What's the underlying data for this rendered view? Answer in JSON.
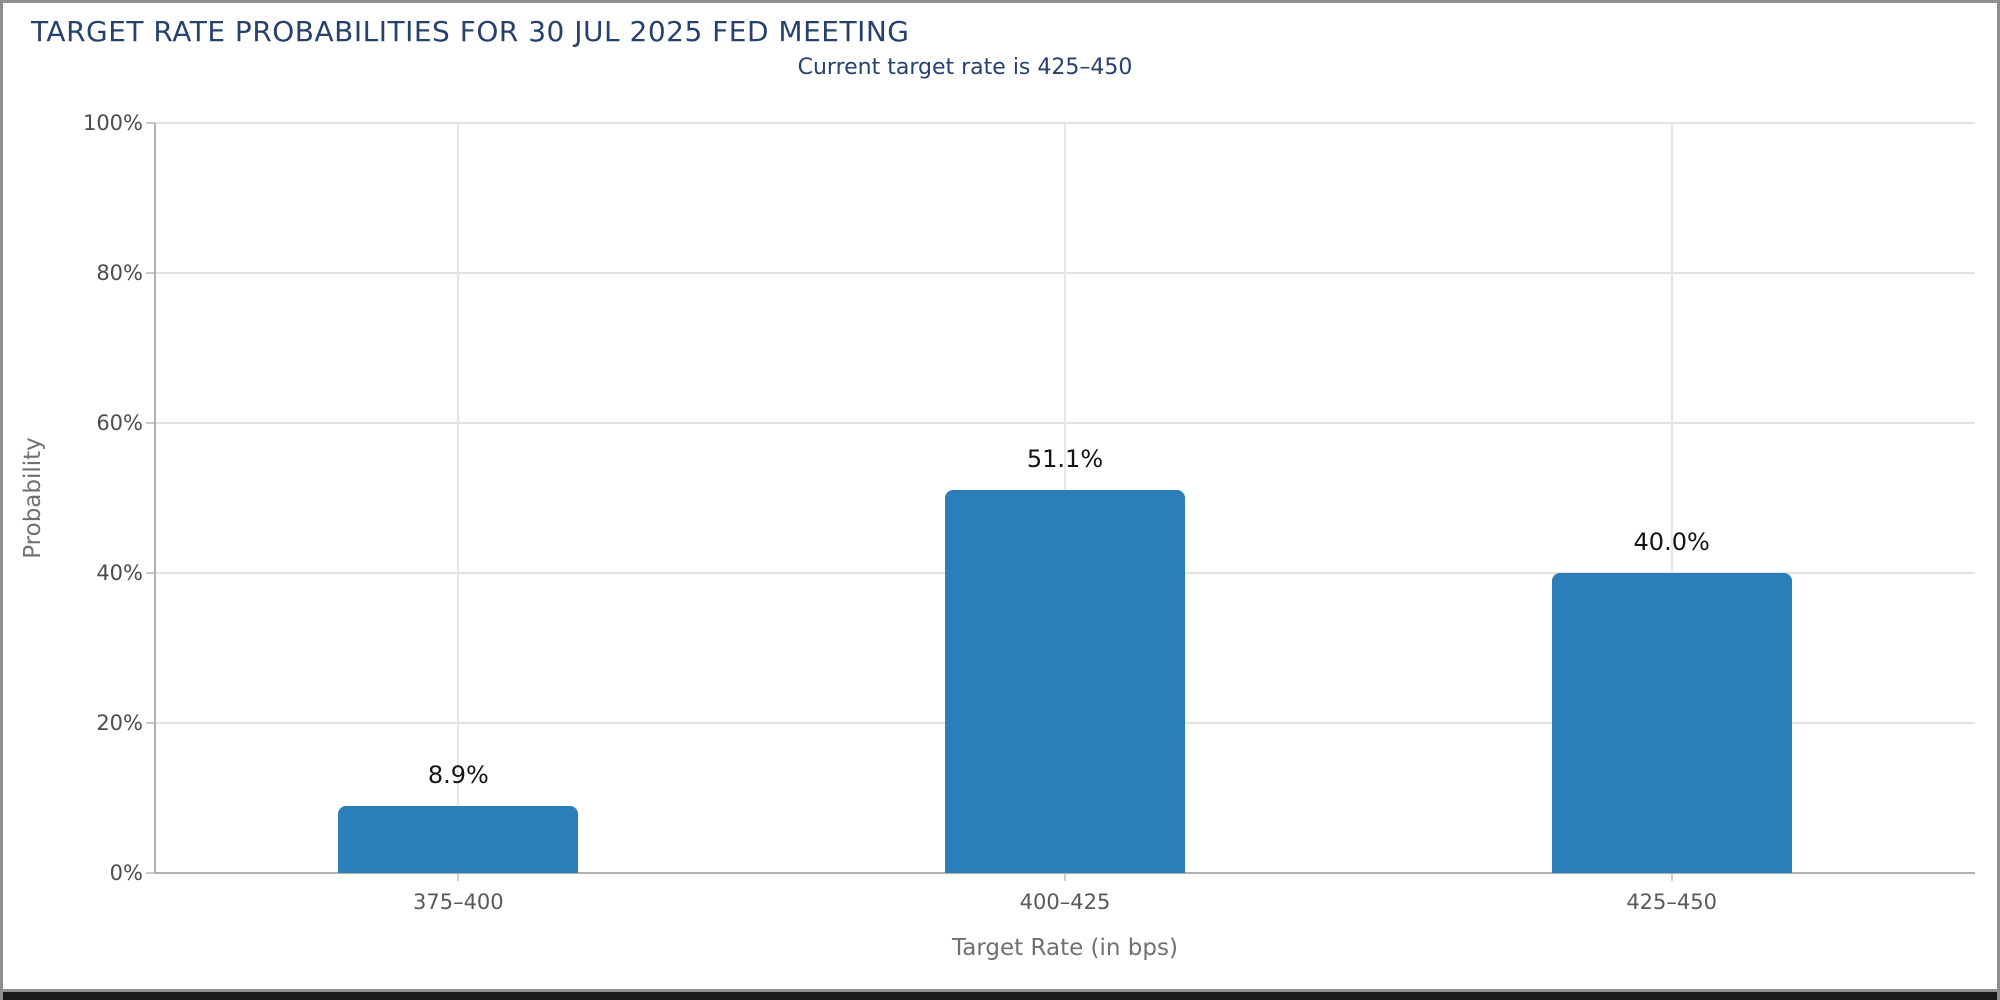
{
  "header": {
    "title": "TARGET RATE PROBABILITIES FOR 30 JUL 2025 FED MEETING",
    "subtitle": "Current target rate is 425–450"
  },
  "chart_data": {
    "type": "bar",
    "title": "TARGET RATE PROBABILITIES FOR 30 JUL 2025 FED MEETING",
    "subtitle": "Current target rate is 425–450",
    "categories": [
      "375–400",
      "400–425",
      "425–450"
    ],
    "values": [
      8.9,
      51.1,
      40.0
    ],
    "value_labels": [
      "8.9%",
      "51.1%",
      "40.0%"
    ],
    "xlabel": "Target Rate (in bps)",
    "ylabel": "Probability",
    "ylim": [
      0,
      100
    ],
    "ytick_step": 20,
    "ytick_labels": [
      "0%",
      "20%",
      "40%",
      "60%",
      "80%",
      "100%"
    ],
    "grid": true,
    "legend": "none",
    "bar_color": "#2b7fb9"
  },
  "colors": {
    "title_navy": "#27416d",
    "bar_blue": "#2b7fb9",
    "gridline": "#e2e2e2",
    "axis_line": "#b0b0b0",
    "tick_label": "#4d4d4d",
    "axis_title": "#707070",
    "frame_border": "#8e8e8e",
    "bottom_strip": "#1a1a1a"
  }
}
